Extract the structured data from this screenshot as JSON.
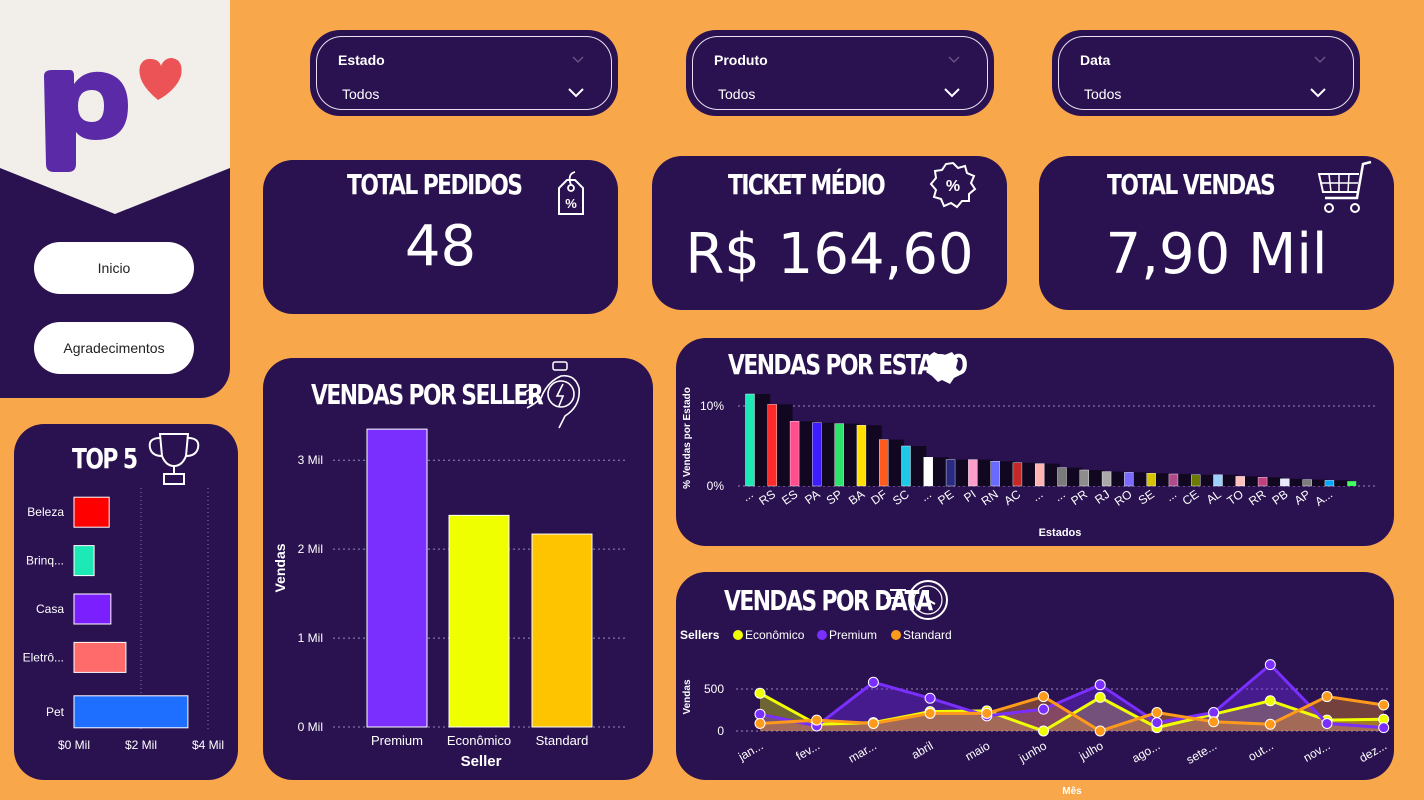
{
  "nav": {
    "home_label": "Inicio",
    "thanks_label": "Agradecimentos"
  },
  "filters": [
    {
      "label": "Estado",
      "value": "Todos"
    },
    {
      "label": "Produto",
      "value": "Todos"
    },
    {
      "label": "Data",
      "value": "Todos"
    }
  ],
  "kpis": {
    "pedidos": {
      "title": "TOTAL PEDIDOS",
      "value": "48"
    },
    "ticket": {
      "title": "TICKET MÉDIO",
      "value": "R$ 164,60"
    },
    "vendas": {
      "title": "TOTAL VENDAS",
      "value": "7,90 Mil"
    }
  },
  "colors": {
    "background": "#f9a74b",
    "panel": "#2a1250"
  },
  "chart_data": [
    {
      "id": "top5",
      "type": "bar",
      "orientation": "horizontal",
      "title": "TOP 5",
      "categories": [
        "Beleza",
        "Brinq...",
        "Casa",
        "Eletrô...",
        "Pet"
      ],
      "values": [
        1050,
        600,
        1100,
        1550,
        3400
      ],
      "colors": [
        "#ff0000",
        "#1de9b6",
        "#7b1fff",
        "#ff6b6b",
        "#1e6fff"
      ],
      "xticks": [
        "$0 Mil",
        "$2 Mil",
        "$4 Mil"
      ],
      "xlim": [
        0,
        4000
      ]
    },
    {
      "id": "seller",
      "type": "bar",
      "title": "VENDAS POR SELLER",
      "xlabel": "Seller",
      "ylabel": "Vendas",
      "categories": [
        "Premium",
        "Econômico",
        "Standard"
      ],
      "values": [
        3350,
        2380,
        2170
      ],
      "colors": [
        "#7b2fff",
        "#f0ff00",
        "#ffc400"
      ],
      "yticks": [
        "0 Mil",
        "1 Mil",
        "2 Mil",
        "3 Mil"
      ],
      "ylim": [
        0,
        3700
      ]
    },
    {
      "id": "estado",
      "type": "bar",
      "title": "VENDAS POR ESTADO",
      "xlabel": "Estados",
      "ylabel": "% Vendas por Estado",
      "yticks": [
        "0%",
        "10%"
      ],
      "ylim": [
        0,
        12
      ],
      "categories": [
        "...",
        "RS",
        "ES",
        "PA",
        "SP",
        "BA",
        "DF",
        "SC",
        "...",
        "PE",
        "PI",
        "RN",
        "AC",
        "...",
        "...",
        "PR",
        "RJ",
        "RO",
        "SE",
        "...",
        "CE",
        "AL",
        "TO",
        "RR",
        "PB",
        "AP",
        "A..."
      ],
      "values": [
        11.5,
        10.2,
        8.1,
        7.9,
        7.8,
        7.6,
        5.8,
        5.0,
        3.6,
        3.3,
        3.3,
        3.1,
        2.9,
        2.8,
        2.3,
        2.0,
        1.8,
        1.7,
        1.6,
        1.5,
        1.4,
        1.4,
        1.2,
        1.1,
        0.9,
        0.8,
        0.7
      ],
      "colors": [
        "#1de9b6",
        "#ff2a2a",
        "#ff4d8d",
        "#3d1cff",
        "#2de36e",
        "#ffe000",
        "#ff5a1f",
        "#1ec8e8",
        "#ffffff",
        "#2a2a80",
        "#ff9ecb",
        "#6a6aff",
        "#c62828",
        "#ffb3b3",
        "#7a7a7a",
        "#8d8d8d",
        "#aaaaaa",
        "#7a6aff",
        "#d4c300",
        "#b04a8c",
        "#6d7a00",
        "#9ed0ff",
        "#ffc0c0",
        "#c04080",
        "#e8e8ff",
        "#7d7d7d",
        "#00aaff"
      ],
      "extra_colors": [
        "#40ff60"
      ]
    },
    {
      "id": "data",
      "type": "line",
      "title": "VENDAS POR DATA",
      "xlabel": "Mês",
      "ylabel": "Vendas",
      "legend_title": "Sellers",
      "legend_position": "top-left",
      "yticks": [
        "0",
        "500"
      ],
      "ylim": [
        0,
        800
      ],
      "categories": [
        "jan...",
        "fev...",
        "mar...",
        "abril",
        "maio",
        "junho",
        "julho",
        "ago...",
        "sete...",
        "out...",
        "nov...",
        "dez..."
      ],
      "series": [
        {
          "name": "Econômico",
          "color": "#f0ff00",
          "values": [
            450,
            80,
            100,
            230,
            240,
            0,
            400,
            40,
            200,
            360,
            130,
            140
          ]
        },
        {
          "name": "Premium",
          "color": "#7b2fff",
          "values": [
            200,
            60,
            580,
            390,
            180,
            260,
            550,
            100,
            220,
            790,
            90,
            40
          ]
        },
        {
          "name": "Standard",
          "color": "#ff9a1a",
          "values": [
            90,
            130,
            90,
            210,
            210,
            410,
            0,
            220,
            110,
            80,
            410,
            310
          ]
        }
      ]
    }
  ]
}
